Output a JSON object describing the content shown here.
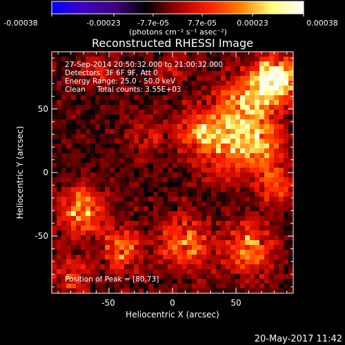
{
  "colorbar": {
    "ticks": [
      "-0.00038",
      "-0.00023",
      "-7.7e-05",
      "7.7e-05",
      "0.00023",
      "0.00038"
    ],
    "units_label": "(photons cm⁻² s⁻¹ asec⁻²)",
    "range": [
      -0.00038,
      0.00038
    ],
    "colors": [
      "#0000ff",
      "#4000c0",
      "#400080",
      "#000000",
      "#a00000",
      "#ff2000",
      "#ff8000",
      "#ffff80",
      "#ffffff"
    ]
  },
  "chart_data": {
    "type": "heatmap",
    "title": "Reconstructed RHESSI Image",
    "xlabel": "Heliocentric X (arcsec)",
    "ylabel": "Heliocentric Y (arcsec)",
    "xlim": [
      -95,
      95
    ],
    "ylim": [
      -95,
      95
    ],
    "xticks": [
      -50,
      0,
      50
    ],
    "yticks": [
      50,
      0,
      -50
    ],
    "info_lines": [
      "27-Sep-2014 20:50:32.000 to 21:00:32.000",
      "Detectors: 3F 6F 9F, Att 0",
      "Energy Range: 25.0 - 50.0 keV",
      "Clean     Total counts: 3.55E+03"
    ],
    "peak_label": "Position of Peak = [80,73]",
    "peak_position": [
      80,
      73
    ],
    "grid": false
  },
  "footer": {
    "date_stamp": "20-May-2017 11:42"
  }
}
